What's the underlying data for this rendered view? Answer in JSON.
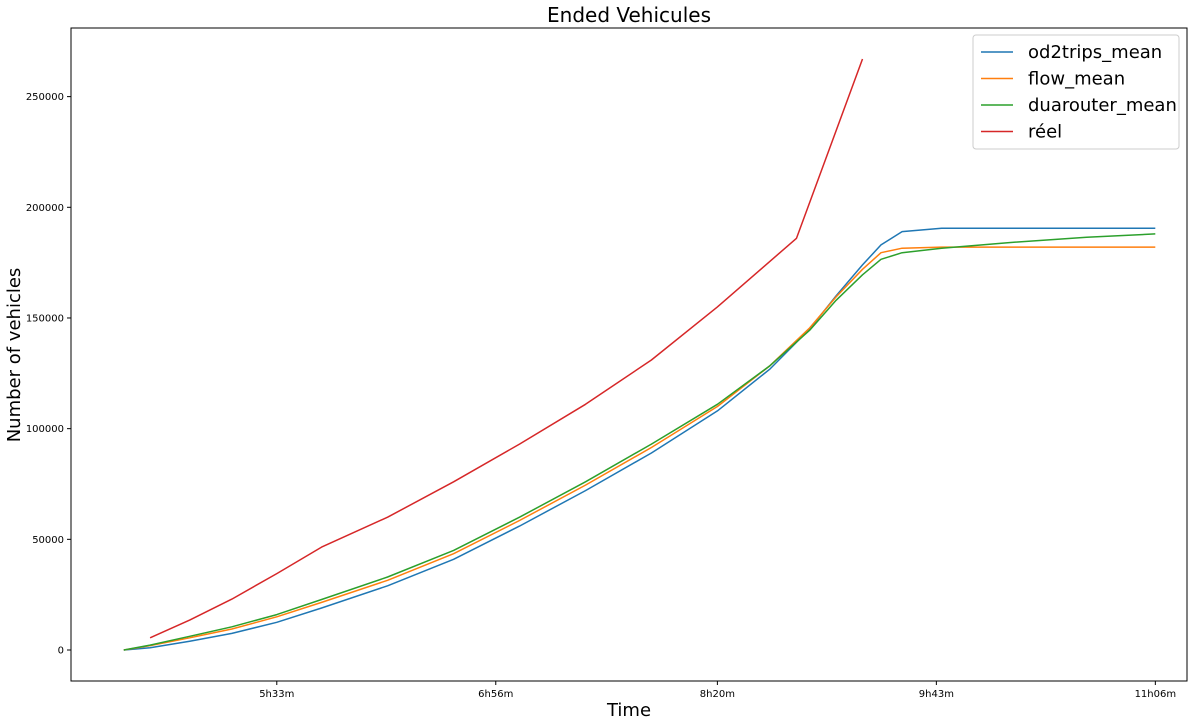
{
  "chart_data": {
    "type": "line",
    "title": "Ended Vehicules",
    "xlabel": "Time",
    "ylabel": "Number of vehicles",
    "x_ticks": [
      "5h33m",
      "6h56m",
      "8h20m",
      "9h43m",
      "11h06m"
    ],
    "x_tick_minutes": [
      333,
      416,
      500,
      583,
      666
    ],
    "xlim_minutes": [
      255,
      678
    ],
    "ylim": [
      -14000,
      281000
    ],
    "y_ticks": [
      0,
      50000,
      100000,
      150000,
      200000,
      250000
    ],
    "legend_position": "upper right",
    "grid": false,
    "series": [
      {
        "name": "od2trips_mean",
        "color": "#1f77b4",
        "x": [
          275,
          285,
          300,
          316,
          333,
          350,
          375,
          400,
          425,
          450,
          475,
          500,
          520,
          535,
          545,
          555,
          562,
          570,
          585,
          610,
          640,
          666
        ],
        "y": [
          0,
          1000,
          4000,
          7500,
          12500,
          19000,
          29000,
          41000,
          56000,
          72000,
          89000,
          108000,
          127000,
          145000,
          160000,
          174000,
          183000,
          189000,
          190500,
          190500,
          190500,
          190500
        ]
      },
      {
        "name": "flow_mean",
        "color": "#ff7f0e",
        "x": [
          275,
          285,
          300,
          316,
          333,
          350,
          375,
          400,
          425,
          450,
          475,
          500,
          520,
          535,
          545,
          555,
          562,
          570,
          585,
          610,
          640,
          666
        ],
        "y": [
          0,
          2000,
          5500,
          9500,
          15000,
          21500,
          31500,
          43500,
          58500,
          74500,
          91500,
          110000,
          128500,
          145500,
          159500,
          172000,
          179500,
          181500,
          182000,
          182000,
          182000,
          182000
        ]
      },
      {
        "name": "duarouter_mean",
        "color": "#2ca02c",
        "x": [
          275,
          285,
          300,
          316,
          333,
          350,
          375,
          400,
          425,
          450,
          475,
          500,
          520,
          535,
          545,
          555,
          562,
          570,
          585,
          610,
          640,
          666
        ],
        "y": [
          0,
          2200,
          6200,
          10500,
          16000,
          22800,
          33000,
          45000,
          60000,
          76000,
          93000,
          111000,
          128500,
          144500,
          158000,
          169500,
          176500,
          179500,
          181500,
          184000,
          186500,
          188000
        ]
      },
      {
        "name": "réel",
        "color": "#d62728",
        "x": [
          285,
          300,
          316,
          333,
          350,
          375,
          400,
          425,
          450,
          475,
          500,
          530,
          555
        ],
        "y": [
          5500,
          13500,
          23000,
          34500,
          46500,
          60000,
          76000,
          93000,
          111000,
          131000,
          155000,
          186000,
          267000
        ]
      }
    ]
  }
}
